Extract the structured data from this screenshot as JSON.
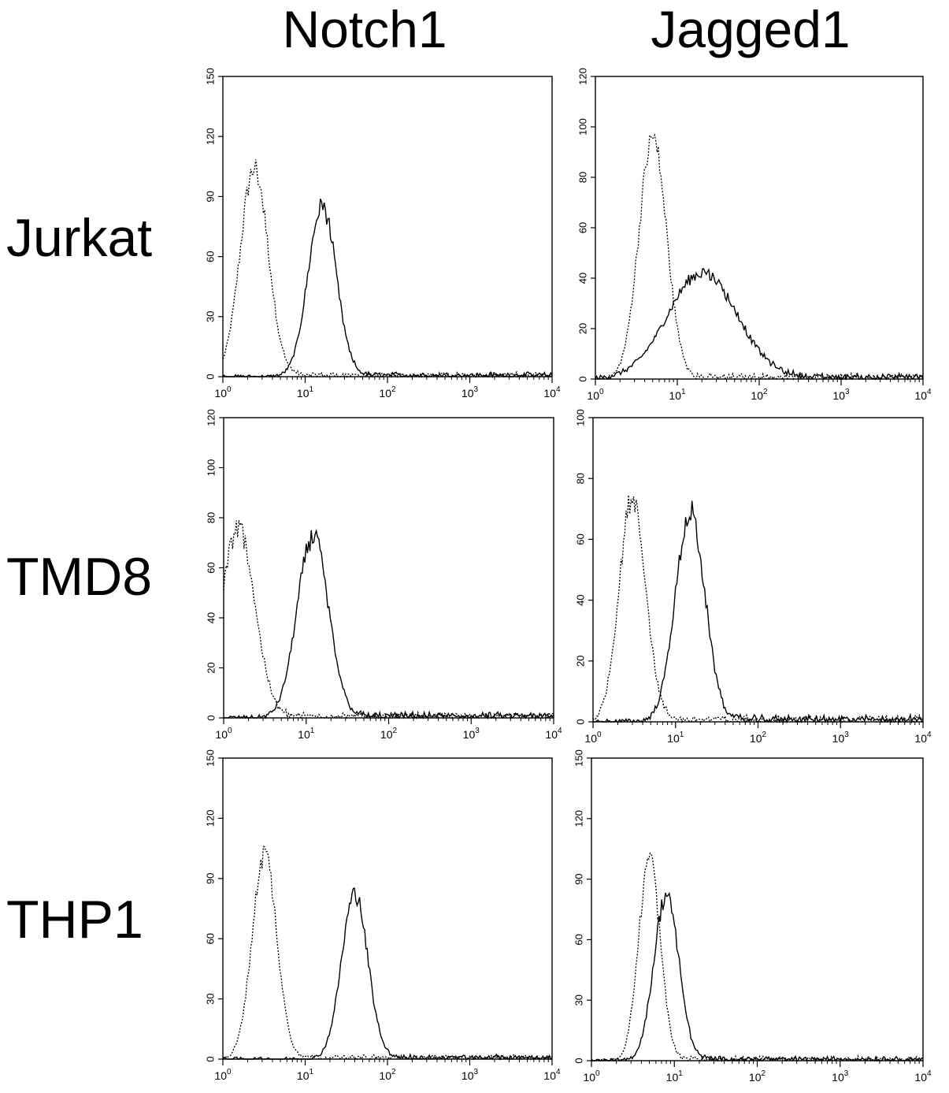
{
  "column_titles": [
    "Notch1",
    "Jagged1"
  ],
  "row_titles": [
    "Jurkat",
    "TMD8",
    "THP1"
  ],
  "chart_data": [
    {
      "type": "line",
      "panel": "Jurkat Notch1",
      "xscale": "log",
      "xlim": [
        1,
        10000
      ],
      "ylim": [
        0,
        150
      ],
      "yticks": [
        0,
        30,
        60,
        90,
        120,
        150
      ],
      "series": [
        {
          "style": "dotted",
          "peak_x": 2.4,
          "peak_y": 104,
          "width": 0.17
        },
        {
          "style": "solid",
          "peak_x": 16,
          "peak_y": 85,
          "width": 0.17
        }
      ]
    },
    {
      "type": "line",
      "panel": "Jurkat Jagged1",
      "xscale": "log",
      "xlim": [
        1,
        10000
      ],
      "ylim": [
        0,
        120
      ],
      "yticks": [
        0,
        20,
        40,
        60,
        80,
        100,
        120
      ],
      "series": [
        {
          "style": "dotted",
          "peak_x": 5,
          "peak_y": 95,
          "width": 0.17
        },
        {
          "style": "solid",
          "peak_x": 20,
          "peak_y": 42,
          "width": 0.42
        }
      ]
    },
    {
      "type": "line",
      "panel": "TMD8 Notch1",
      "xscale": "log",
      "xlim": [
        1,
        10000
      ],
      "ylim": [
        0,
        120
      ],
      "yticks": [
        0,
        20,
        40,
        60,
        80,
        100,
        120
      ],
      "series": [
        {
          "style": "dotted",
          "peak_x": 1.5,
          "peak_y": 76,
          "width": 0.2
        },
        {
          "style": "solid",
          "peak_x": 12,
          "peak_y": 72,
          "width": 0.19
        }
      ]
    },
    {
      "type": "line",
      "panel": "TMD8 Jagged1",
      "xscale": "log",
      "xlim": [
        1,
        10000
      ],
      "ylim": [
        0,
        100
      ],
      "yticks": [
        0,
        20,
        40,
        60,
        80,
        100
      ],
      "series": [
        {
          "style": "dotted",
          "peak_x": 3,
          "peak_y": 74,
          "width": 0.16
        },
        {
          "style": "solid",
          "peak_x": 15,
          "peak_y": 68,
          "width": 0.18
        }
      ]
    },
    {
      "type": "line",
      "panel": "THP1 Notch1",
      "xscale": "log",
      "xlim": [
        1,
        10000
      ],
      "ylim": [
        0,
        150
      ],
      "yticks": [
        0,
        30,
        60,
        90,
        120,
        150
      ],
      "series": [
        {
          "style": "dotted",
          "peak_x": 3.2,
          "peak_y": 102,
          "width": 0.15
        },
        {
          "style": "solid",
          "peak_x": 40,
          "peak_y": 82,
          "width": 0.16
        }
      ]
    },
    {
      "type": "line",
      "panel": "THP1 Jagged1",
      "xscale": "log",
      "xlim": [
        1,
        10000
      ],
      "ylim": [
        0,
        150
      ],
      "yticks": [
        0,
        30,
        60,
        90,
        120,
        150
      ],
      "series": [
        {
          "style": "dotted",
          "peak_x": 5,
          "peak_y": 100,
          "width": 0.13
        },
        {
          "style": "solid",
          "peak_x": 8,
          "peak_y": 82,
          "width": 0.15
        }
      ]
    }
  ],
  "x_tick_labels": [
    {
      "base": "10",
      "exp": "0"
    },
    {
      "base": "10",
      "exp": "1"
    },
    {
      "base": "10",
      "exp": "2"
    },
    {
      "base": "10",
      "exp": "3"
    },
    {
      "base": "10",
      "exp": "4"
    }
  ]
}
